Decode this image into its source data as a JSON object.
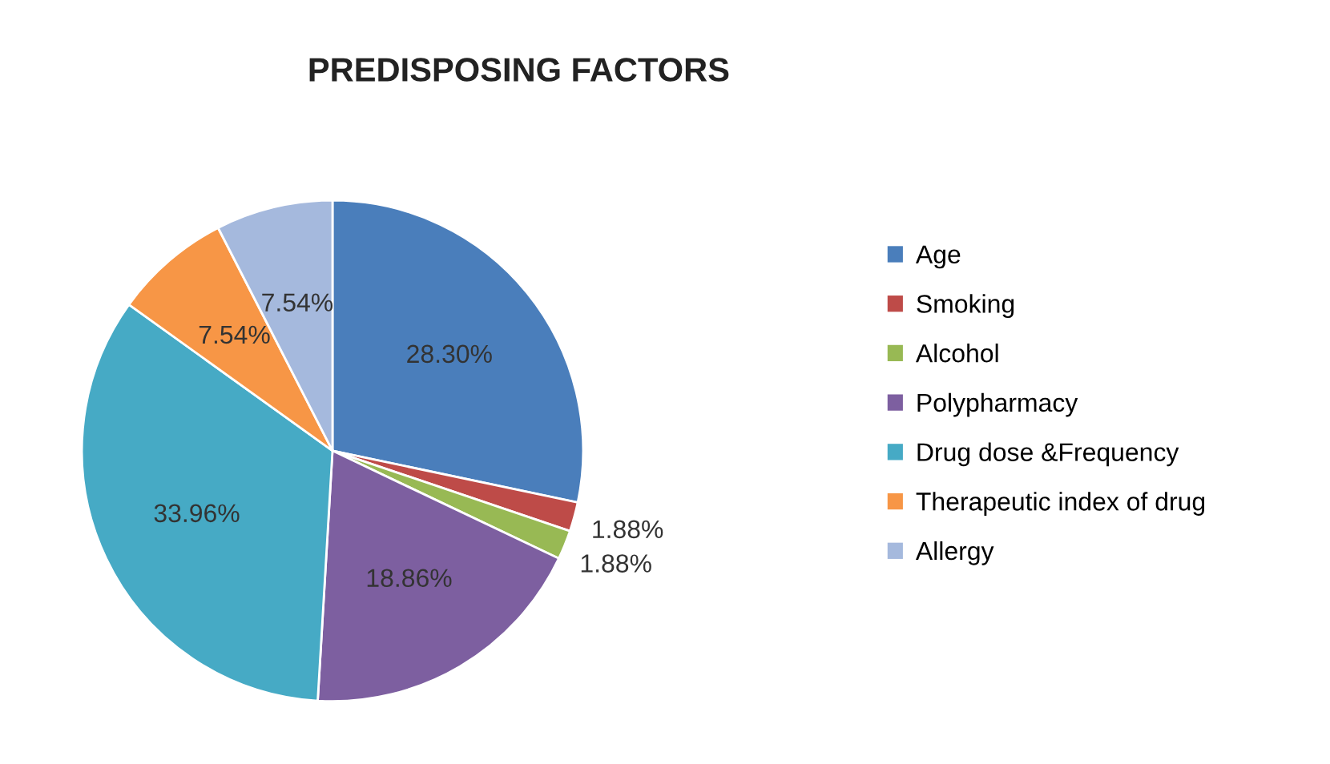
{
  "chart_data": {
    "type": "pie",
    "title": "PREDISPOSING FACTORS",
    "categories": [
      "Age",
      "Smoking",
      "Alcohol",
      "Polypharmacy",
      "Drug dose &Frequency",
      "Therapeutic index of drug",
      "Allergy"
    ],
    "values": [
      28.3,
      1.88,
      1.88,
      18.86,
      33.96,
      7.54,
      7.54
    ],
    "value_labels": [
      "28.30%",
      "1.88%",
      "1.88%",
      "18.86%",
      "33.96%",
      "7.54%",
      "7.54%"
    ],
    "colors": [
      "#4a7ebb",
      "#be4b48",
      "#98b954",
      "#7d5fa0",
      "#46aac5",
      "#f79646",
      "#a5b9dd"
    ],
    "legend": "right"
  }
}
